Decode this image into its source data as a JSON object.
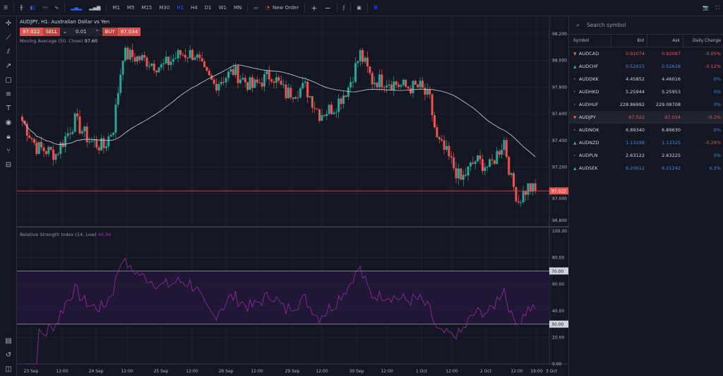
{
  "toolbar": {
    "menu_icon": "hamburger-icon",
    "chart_types": [
      "bar-chart-icon",
      "candlestick-icon",
      "line-icon",
      "area-icon"
    ],
    "volume_icons": [
      "volume-icon",
      "volume-ma-icon"
    ],
    "timeframes": [
      "M1",
      "M5",
      "M15",
      "M30",
      "H1",
      "H4",
      "D1",
      "W1",
      "MN"
    ],
    "active_timeframe": "H1",
    "new_order": "New Order",
    "zoom_in": "+",
    "zoom_out": "−"
  },
  "left_tools": [
    "crosshair-icon",
    "trendline-icon",
    "channel-icon",
    "ray-icon",
    "rectangle-icon",
    "fib-icon",
    "text-icon",
    "eye-icon",
    "lock-icon",
    "tree-icon",
    "template-icon"
  ],
  "left_bottom": [
    "layers-icon",
    "history-icon",
    "layout-icon"
  ],
  "chart": {
    "title": "AUDJPY, H1: Australian Dollar vs Yen",
    "sell_price": "97.022",
    "sell_label": "SELL",
    "lot": "0.01",
    "buy_label": "BUY",
    "buy_price": "97.034",
    "ma_label": "Moving Average (50, Close)",
    "ma_value": "97.60",
    "current_price": "97.022",
    "price_ticks": [
      "98.200",
      "98.000",
      "97.800",
      "97.600",
      "97.400",
      "97.200",
      "97.000",
      "96.800"
    ],
    "time_labels": [
      "23 Sep",
      "12:00",
      "24 Sep",
      "12:00",
      "25 Sep",
      "12:00",
      "26 Sep",
      "12:00",
      "29 Sep",
      "12:00",
      "30 Sep",
      "12:00",
      "1 Oct",
      "12:00",
      "2 Oct",
      "12:00",
      "19:00",
      "3 Oct"
    ],
    "price_path": [
      [
        0,
        97.55
      ],
      [
        6,
        97.35
      ],
      [
        14,
        97.3
      ],
      [
        22,
        97.55
      ],
      [
        28,
        97.4
      ],
      [
        34,
        97.35
      ],
      [
        38,
        97.5
      ],
      [
        42,
        98.05
      ],
      [
        52,
        98.0
      ],
      [
        58,
        97.95
      ],
      [
        66,
        98.05
      ],
      [
        72,
        98.05
      ],
      [
        76,
        97.9
      ],
      [
        80,
        97.82
      ],
      [
        88,
        97.92
      ],
      [
        96,
        97.8
      ],
      [
        104,
        97.9
      ],
      [
        110,
        97.75
      ],
      [
        118,
        97.8
      ],
      [
        124,
        97.6
      ],
      [
        130,
        97.65
      ],
      [
        136,
        97.8
      ],
      [
        141,
        98.05
      ],
      [
        146,
        97.85
      ],
      [
        152,
        97.85
      ],
      [
        160,
        97.8
      ],
      [
        166,
        97.8
      ],
      [
        170,
        97.7
      ],
      [
        173,
        97.4
      ],
      [
        177,
        97.3
      ],
      [
        183,
        97.1
      ],
      [
        189,
        97.25
      ],
      [
        195,
        97.2
      ],
      [
        201,
        97.4
      ],
      [
        204,
        97.1
      ],
      [
        207,
        96.95
      ],
      [
        211,
        97.05
      ],
      [
        214,
        97.02
      ]
    ],
    "rsi_label": "Relative Strength Index (14, Low)",
    "rsi_value": "46.86",
    "rsi_ticks": [
      "100.00",
      "80.00",
      "60.00",
      "40.00",
      "20.00",
      "0.00"
    ],
    "rsi_levels": [
      "70.00",
      "30.00"
    ],
    "colors": {
      "up": "#26a69a",
      "down": "#ef5350",
      "ma": "#d1d4dc",
      "rsi": "#9c27b0",
      "rsi_band": "#1f1733"
    }
  },
  "watchlist": {
    "search_placeholder": "Search symbol",
    "columns": [
      "Symbol",
      "Bid",
      "Ask",
      "Daily Change"
    ],
    "rows": [
      {
        "symbol": "AUDCAD",
        "dir": "down",
        "bid": "0.92074",
        "ask": "0.92087",
        "change": "-0.05%"
      },
      {
        "symbol": "AUDCHF",
        "dir": "up",
        "bid": "0.52615",
        "ask": "0.52628",
        "change": "-0.12%"
      },
      {
        "symbol": "AUDDKK",
        "dir": "none",
        "bid": "4.45852",
        "ask": "4.46016",
        "change": "0%"
      },
      {
        "symbol": "AUDHKD",
        "dir": "none",
        "bid": "5.25944",
        "ask": "5.25953",
        "change": "0%"
      },
      {
        "symbol": "AUDHUF",
        "dir": "none",
        "bid": "228.86992",
        "ask": "229.08708",
        "change": "0%"
      },
      {
        "symbol": "AUDJPY",
        "dir": "down",
        "bid": "97.022",
        "ask": "97.034",
        "change": "-0.2%"
      },
      {
        "symbol": "AUDNOK",
        "dir": "none",
        "bid": "6.89340",
        "ask": "6.89630",
        "change": "0%"
      },
      {
        "symbol": "AUDNZD",
        "dir": "up",
        "bid": "1.13298",
        "ask": "1.13325",
        "change": "-0.29%"
      },
      {
        "symbol": "AUDPLN",
        "dir": "none",
        "bid": "2.63122",
        "ask": "2.63225",
        "change": "0%"
      },
      {
        "symbol": "AUDSEK",
        "dir": "up",
        "bid": "6.20612",
        "ask": "6.21242",
        "change": "0.3%"
      }
    ]
  }
}
